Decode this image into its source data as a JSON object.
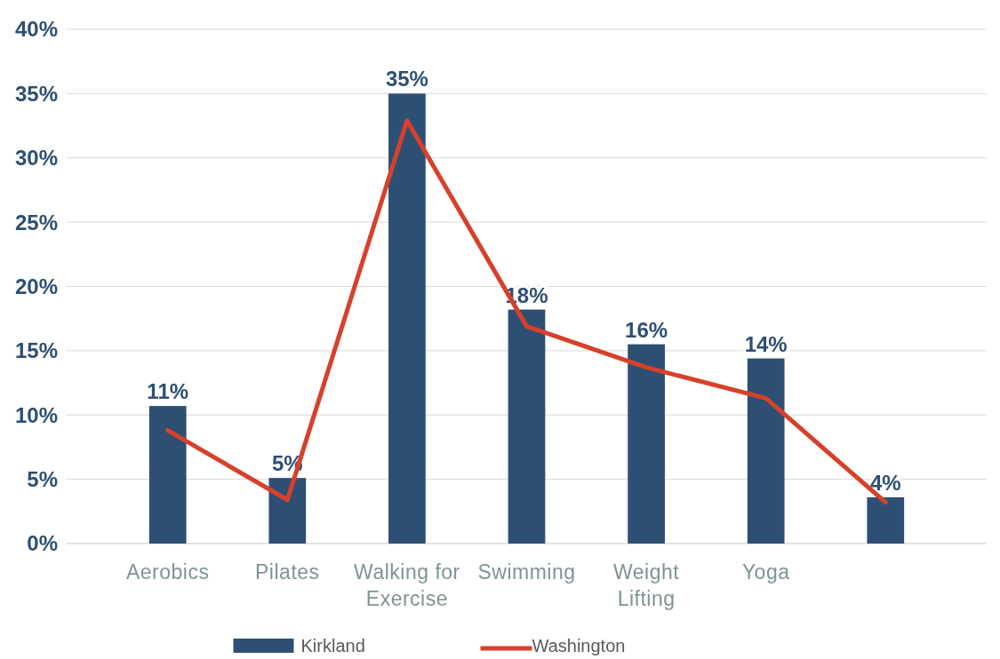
{
  "chart_data": {
    "type": "bar",
    "categories": [
      "Aerobics",
      "Pilates",
      "Walking for Exercise",
      "Swimming",
      "Weight Lifting",
      "Yoga",
      null
    ],
    "series": [
      {
        "name": "Kirkland",
        "color": "#2e4f74",
        "values": [
          10.7,
          5.1,
          35,
          18.2,
          15.5,
          14.4,
          3.6
        ],
        "value_labels": [
          "11%",
          "5%",
          "35%",
          "18%",
          "16%",
          "14%",
          "4%"
        ]
      },
      {
        "name": "Washington",
        "type": "line",
        "color": "#d6412b",
        "values": [
          8.8,
          3.4,
          32.9,
          16.9,
          13.7,
          11.3,
          3.2
        ]
      }
    ],
    "ylim": [
      0,
      40
    ],
    "yticks": [
      {
        "value": 0,
        "label": "0%"
      },
      {
        "value": 5,
        "label": "5%"
      },
      {
        "value": 10,
        "label": "10%"
      },
      {
        "value": 15,
        "label": "15%"
      },
      {
        "value": 20,
        "label": "20%"
      },
      {
        "value": 25,
        "label": "25%"
      },
      {
        "value": 30,
        "label": "30%"
      },
      {
        "value": 35,
        "label": "35%"
      },
      {
        "value": 40,
        "label": "40%"
      }
    ],
    "grid": "y",
    "legend": "bottom",
    "marker": "none",
    "line_style": "solid"
  }
}
